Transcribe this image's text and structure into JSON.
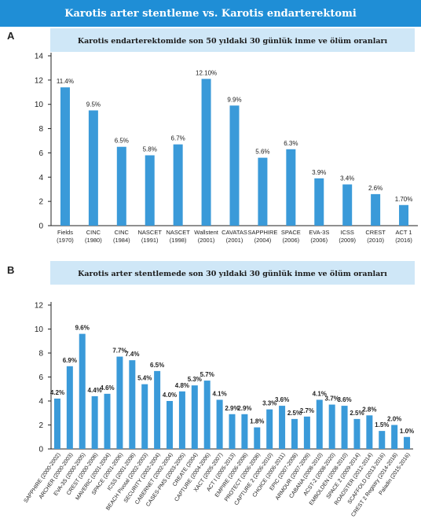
{
  "page_title": "Karotis arter stentleme vs. Karotis endarterektomi",
  "chart_data": [
    {
      "panel": "A",
      "type": "bar",
      "title": "Karotis endarterektomide son 50 yıldaki 30 günlük inme ve ölüm oranları",
      "categories": [
        [
          "Fields",
          "(1970)"
        ],
        [
          "CINC",
          "(1980)"
        ],
        [
          "CINC",
          "(1984)"
        ],
        [
          "NASCET",
          "(1991)"
        ],
        [
          "NASCET",
          "(1998)"
        ],
        [
          "Wallstent",
          "(2001)"
        ],
        [
          "CAVATAS",
          "(2001)"
        ],
        [
          "SAPPHIRE",
          "(2004)"
        ],
        [
          "SPACE",
          "(2006)"
        ],
        [
          "EVA-3S",
          "(2006)"
        ],
        [
          "ICSS",
          "(2009)"
        ],
        [
          "CREST",
          "(2010)"
        ],
        [
          "ACT 1",
          "(2016)"
        ]
      ],
      "values": [
        11.4,
        9.5,
        6.5,
        5.8,
        6.7,
        12.1,
        9.9,
        5.6,
        6.3,
        3.9,
        3.4,
        2.6,
        1.7
      ],
      "value_labels": [
        "11.4%",
        "9.5%",
        "6.5%",
        "5.8%",
        "6.7%",
        "12.10%",
        "9.9%",
        "5.6%",
        "6.3%",
        "3.9%",
        "3.4%",
        "2.6%",
        "1.70%"
      ],
      "ylim": [
        0,
        14
      ],
      "yticks": [
        "0",
        "2",
        "4",
        "6",
        "8",
        "10",
        "12",
        "14"
      ],
      "grid": false,
      "bar_color": "#3a9ad9"
    },
    {
      "panel": "B",
      "type": "bar",
      "title": "Karotis arter stentlemede son 30 yıldaki 30 günlük inme ve ölüm oranları",
      "categories": [
        "SAPPHIRE (2000-2002)",
        "ARCHER (2000-2003)",
        "EVA-3S (2000-2005)",
        "CREST (2000-2008)",
        "MAVERIC (2001-2004)",
        "SPACE (2001-2006)",
        "ICSS (2001-2008)",
        "BEACH Pivotal (2002-2003)",
        "SECURITY (2002-2004)",
        "CABERNET (2002-2004)",
        "CASES-PMS (2003-2005)",
        "CREATE (2004)",
        "CAPTURE (2004-2006)",
        "XACT (2005-2007)",
        "ACT I (2005-2013)",
        "EMPIRE (2006-2008)",
        "PROTECT (2006-2008)",
        "CAPTURE 2 (2006-2010)",
        "CHOICE (2006-2011)",
        "EPIC (2007-2008)",
        "ARMOUR (2007-2009)",
        "CABANA (2008-2010)",
        "ACST-2 (2008-2020)",
        "EMBOLDEN (2008-2010)",
        "SPACE 2 (2009-2014)",
        "ROADSTER (2012-2014)",
        "SCAFFOLD (2013-2016)",
        "CREST 2 Registry (2014-2018)",
        "Paladin (2015-2016)"
      ],
      "values": [
        4.2,
        6.9,
        9.6,
        4.4,
        4.6,
        7.7,
        7.4,
        5.4,
        6.5,
        4.0,
        4.8,
        5.3,
        5.7,
        4.1,
        2.9,
        2.9,
        1.8,
        3.3,
        3.6,
        2.5,
        2.7,
        4.1,
        3.7,
        3.6,
        2.5,
        2.8,
        1.5,
        2.0,
        1.0
      ],
      "value_labels": [
        "4.2%",
        "6.9%",
        "9.6%",
        "4.4%",
        "4.6%",
        "7.7%",
        "7.4%",
        "5.4%",
        "6.5%",
        "4.0%",
        "4.8%",
        "5.3%",
        "5.7%",
        "4.1%",
        "2.9%",
        "2.9%",
        "1.8%",
        "3.3%",
        "3.6%",
        "2.5%",
        "2.7%",
        "4.1%",
        "3.7%",
        "3.6%",
        "2.5%",
        "2.8%",
        "1.5%",
        "2.0%",
        "1.0%"
      ],
      "ylim": [
        0,
        12
      ],
      "yticks": [
        "0",
        "2",
        "4",
        "6",
        "8",
        "10",
        "12"
      ],
      "grid": false,
      "bar_color": "#3a9ad9"
    }
  ]
}
